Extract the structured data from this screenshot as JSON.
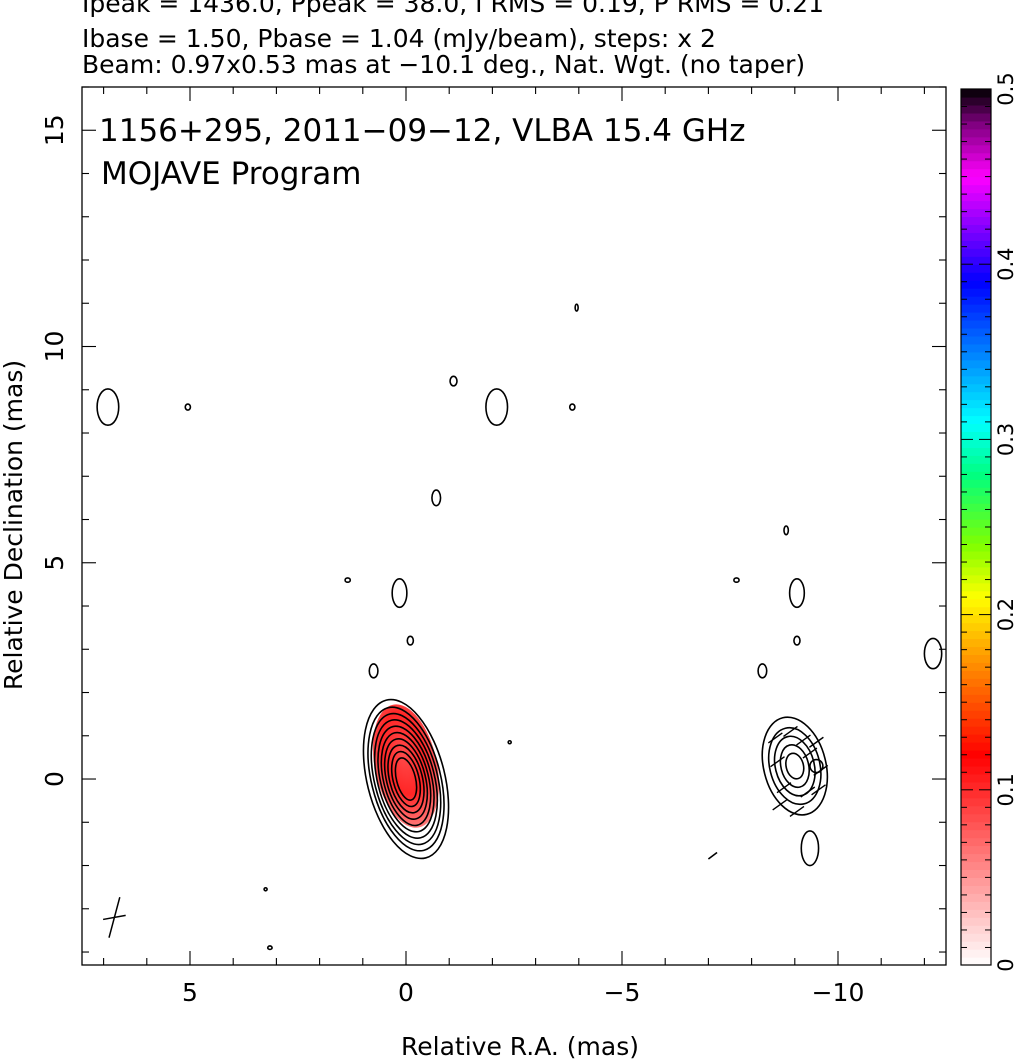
{
  "header": {
    "line1": "Ipeak = 1436.0, Ppeak = 38.0, I RMS = 0.19, P RMS = 0.21",
    "line2": "Ibase = 1.50, Pbase = 1.04 (mJy/beam), steps: x 2",
    "line3": "Beam: 0.97x0.53 mas at −10.1 deg., Nat. Wgt. (no taper)"
  },
  "chart_data": {
    "type": "heatmap",
    "title": "1156+295, 2011−09−12, VLBA 15.4 GHz",
    "subtitle": "MOJAVE Program",
    "xlabel": "Relative R.A. (mas)",
    "ylabel": "Relative Declination (mas)",
    "xlim": [
      7.5,
      -12.5
    ],
    "ylim": [
      -4.3,
      16.0
    ],
    "x_ticks": [
      5,
      0,
      -5,
      -10
    ],
    "x_tick_labels": [
      "5",
      "0",
      "−5",
      "−10"
    ],
    "y_ticks": [
      0,
      5,
      10,
      15
    ],
    "y_tick_labels": [
      "0",
      "5",
      "10",
      "15"
    ],
    "colorbar": {
      "range": [
        0,
        0.5
      ],
      "ticks": [
        0,
        0.1,
        0.2,
        0.3,
        0.4,
        0.5
      ],
      "tick_labels": [
        "0",
        "0.1",
        "0.2",
        "0.3",
        "0.4",
        "0.5"
      ],
      "stops": [
        {
          "v": 0.0,
          "color": "#ffffff"
        },
        {
          "v": 0.12,
          "color": "#ff0000"
        },
        {
          "v": 0.18,
          "color": "#ffa500"
        },
        {
          "v": 0.21,
          "color": "#ffff00"
        },
        {
          "v": 0.24,
          "color": "#80ff00"
        },
        {
          "v": 0.28,
          "color": "#00ff80"
        },
        {
          "v": 0.31,
          "color": "#00ffff"
        },
        {
          "v": 0.35,
          "color": "#0080ff"
        },
        {
          "v": 0.39,
          "color": "#0000ff"
        },
        {
          "v": 0.42,
          "color": "#8000ff"
        },
        {
          "v": 0.45,
          "color": "#ff00ff"
        },
        {
          "v": 0.48,
          "color": "#800080"
        },
        {
          "v": 0.5,
          "color": "#000000"
        }
      ]
    },
    "maps": [
      {
        "name": "left panel",
        "center": [
          0,
          0
        ],
        "core_contours": [
          {
            "rx": 0.22,
            "ry": 0.5
          },
          {
            "rx": 0.3,
            "ry": 0.65
          },
          {
            "rx": 0.38,
            "ry": 0.8
          },
          {
            "rx": 0.45,
            "ry": 0.95
          },
          {
            "rx": 0.52,
            "ry": 1.1
          },
          {
            "rx": 0.59,
            "ry": 1.25
          },
          {
            "rx": 0.66,
            "ry": 1.4
          },
          {
            "rx": 0.73,
            "ry": 1.55
          },
          {
            "rx": 0.8,
            "ry": 1.7
          },
          {
            "rx": 0.9,
            "ry": 1.88
          }
        ],
        "polarized_patch": {
          "x": 0.0,
          "y": 0.3,
          "rx": 0.72,
          "ry": 1.45,
          "value": 0.12
        },
        "islands": [
          {
            "x": 6.9,
            "y": 8.6,
            "rx": 0.25,
            "ry": 0.42
          },
          {
            "x": 5.05,
            "y": 8.6,
            "rx": 0.06,
            "ry": 0.07
          },
          {
            "x": -2.1,
            "y": 8.6,
            "rx": 0.25,
            "ry": 0.42
          },
          {
            "x": -1.1,
            "y": 9.2,
            "rx": 0.08,
            "ry": 0.11
          },
          {
            "x": -0.7,
            "y": 6.5,
            "rx": 0.1,
            "ry": 0.18
          },
          {
            "x": 1.35,
            "y": 4.6,
            "rx": 0.06,
            "ry": 0.05
          },
          {
            "x": 0.15,
            "y": 4.3,
            "rx": 0.17,
            "ry": 0.33
          },
          {
            "x": -0.1,
            "y": 3.2,
            "rx": 0.07,
            "ry": 0.1
          },
          {
            "x": 0.75,
            "y": 2.5,
            "rx": 0.1,
            "ry": 0.16
          },
          {
            "x": -3.85,
            "y": 8.6,
            "rx": 0.06,
            "ry": 0.07
          },
          {
            "x": 3.25,
            "y": -2.55,
            "rx": 0.03,
            "ry": 0.03
          },
          {
            "x": 3.15,
            "y": -3.9,
            "rx": 0.05,
            "ry": 0.04
          },
          {
            "x": -2.4,
            "y": 0.85,
            "rx": 0.02,
            "ry": 0.02
          }
        ]
      },
      {
        "name": "right panel",
        "center": [
          -9.0,
          0.3
        ],
        "core_contours": [
          {
            "rx": 0.2,
            "ry": 0.3
          },
          {
            "rx": 0.32,
            "ry": 0.5
          },
          {
            "rx": 0.45,
            "ry": 0.7
          },
          {
            "rx": 0.58,
            "ry": 0.9
          },
          {
            "rx": 0.72,
            "ry": 1.15
          }
        ],
        "islands": [
          {
            "x": -8.8,
            "y": 5.75,
            "rx": 0.05,
            "ry": 0.1
          },
          {
            "x": -7.65,
            "y": 4.6,
            "rx": 0.06,
            "ry": 0.05
          },
          {
            "x": -9.05,
            "y": 4.3,
            "rx": 0.17,
            "ry": 0.33
          },
          {
            "x": -9.05,
            "y": 3.2,
            "rx": 0.07,
            "ry": 0.1
          },
          {
            "x": -8.25,
            "y": 2.5,
            "rx": 0.1,
            "ry": 0.16
          },
          {
            "x": -12.2,
            "y": 2.9,
            "rx": 0.2,
            "ry": 0.35
          },
          {
            "x": -9.35,
            "y": -1.6,
            "rx": 0.2,
            "ry": 0.4
          },
          {
            "x": -9.5,
            "y": 0.3,
            "rx": 0.15,
            "ry": 0.15
          },
          {
            "x": -3.95,
            "y": 10.9,
            "rx": 0.02,
            "ry": 0.08
          }
        ]
      }
    ],
    "beam": {
      "x": 6.75,
      "y": -3.2,
      "major": 0.97,
      "minor": 0.53,
      "pa_deg": -10.1
    }
  }
}
